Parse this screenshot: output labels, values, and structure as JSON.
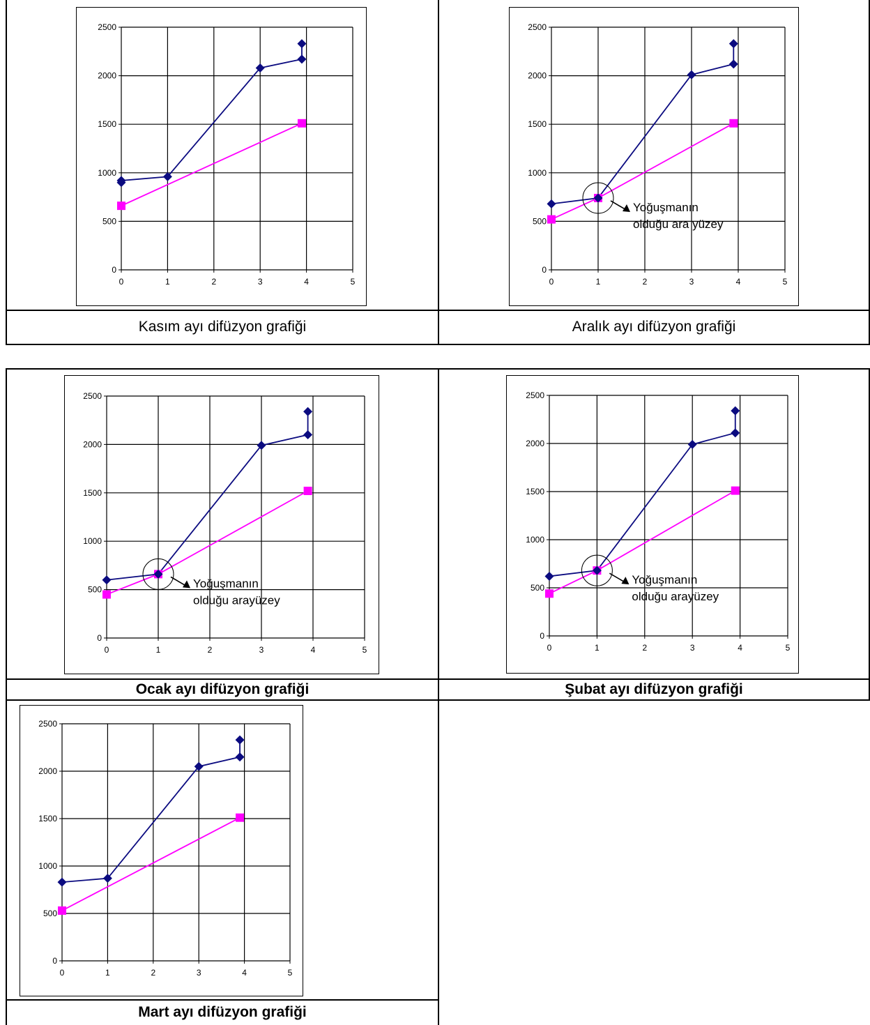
{
  "chart_data": [
    {
      "type": "line",
      "caption": "Kasım ayı difüzyon grafiği",
      "caption_bold": false,
      "xlim": [
        0,
        5
      ],
      "ylim": [
        0,
        2500
      ],
      "x_ticks": [
        "0",
        "1",
        "2",
        "3",
        "4",
        "5"
      ],
      "y_ticks": [
        "0",
        "500",
        "1000",
        "1500",
        "2000",
        "2500"
      ],
      "grid": true,
      "series": [
        {
          "color": "#0b0b80",
          "marker": "diamond",
          "points": [
            [
              0,
              900
            ],
            [
              0,
              920
            ],
            [
              1,
              960
            ],
            [
              3,
              2080
            ],
            [
              3.9,
              2170
            ],
            [
              3.9,
              2330
            ]
          ]
        },
        {
          "color": "#ff00ff",
          "marker": "square",
          "points": [
            [
              0,
              660
            ],
            [
              3.9,
              1510
            ]
          ]
        }
      ],
      "annotation": null
    },
    {
      "type": "line",
      "caption": "Aralık ayı difüzyon grafiği",
      "caption_bold": false,
      "xlim": [
        0,
        5
      ],
      "ylim": [
        0,
        2500
      ],
      "x_ticks": [
        "0",
        "1",
        "2",
        "3",
        "4",
        "5"
      ],
      "y_ticks": [
        "0",
        "500",
        "1000",
        "1500",
        "2000",
        "2500"
      ],
      "grid": true,
      "series": [
        {
          "color": "#0b0b80",
          "marker": "diamond",
          "points": [
            [
              0,
              680
            ],
            [
              1,
              740
            ],
            [
              3,
              2010
            ],
            [
              3.9,
              2120
            ],
            [
              3.9,
              2330
            ]
          ]
        },
        {
          "color": "#ff00ff",
          "marker": "square",
          "points": [
            [
              0,
              520
            ],
            [
              1,
              740
            ],
            [
              3.9,
              1510
            ]
          ]
        }
      ],
      "annotation": {
        "lines": [
          "Yoğuşmanın",
          "olduğu ara yüzey"
        ],
        "x": 1,
        "y": 740
      }
    },
    {
      "type": "line",
      "caption": "Ocak ayı difüzyon grafiği",
      "caption_bold": true,
      "xlim": [
        0,
        5
      ],
      "ylim": [
        0,
        2500
      ],
      "x_ticks": [
        "0",
        "1",
        "2",
        "3",
        "4",
        "5"
      ],
      "y_ticks": [
        "0",
        "500",
        "1000",
        "1500",
        "2000",
        "2500"
      ],
      "grid": true,
      "series": [
        {
          "color": "#0b0b80",
          "marker": "diamond",
          "points": [
            [
              0,
              600
            ],
            [
              1,
              660
            ],
            [
              3,
              1990
            ],
            [
              3.9,
              2100
            ],
            [
              3.9,
              2340
            ]
          ]
        },
        {
          "color": "#ff00ff",
          "marker": "square",
          "points": [
            [
              0,
              450
            ],
            [
              1,
              660
            ],
            [
              3.9,
              1520
            ]
          ]
        }
      ],
      "annotation": {
        "lines": [
          "Yoğuşmanın",
          "olduğu arayüzey"
        ],
        "x": 1,
        "y": 660
      }
    },
    {
      "type": "line",
      "caption": "Şubat ayı difüzyon grafiği",
      "caption_bold": true,
      "xlim": [
        0,
        5
      ],
      "ylim": [
        0,
        2500
      ],
      "x_ticks": [
        "0",
        "1",
        "2",
        "3",
        "4",
        "5"
      ],
      "y_ticks": [
        "0",
        "500",
        "1000",
        "1500",
        "2000",
        "2500"
      ],
      "grid": true,
      "series": [
        {
          "color": "#0b0b80",
          "marker": "diamond",
          "points": [
            [
              0,
              620
            ],
            [
              1,
              680
            ],
            [
              3,
              1990
            ],
            [
              3.9,
              2110
            ],
            [
              3.9,
              2340
            ]
          ]
        },
        {
          "color": "#ff00ff",
          "marker": "square",
          "points": [
            [
              0,
              440
            ],
            [
              1,
              680
            ],
            [
              3.9,
              1510
            ]
          ]
        }
      ],
      "annotation": {
        "lines": [
          "Yoğuşmanın",
          "olduğu arayüzey"
        ],
        "x": 1,
        "y": 680
      }
    },
    {
      "type": "line",
      "caption": "Mart ayı difüzyon grafiği",
      "caption_bold": true,
      "xlim": [
        0,
        5
      ],
      "ylim": [
        0,
        2500
      ],
      "x_ticks": [
        "0",
        "1",
        "2",
        "3",
        "4",
        "5"
      ],
      "y_ticks": [
        "0",
        "500",
        "1000",
        "1500",
        "2000",
        "2500"
      ],
      "grid": true,
      "series": [
        {
          "color": "#0b0b80",
          "marker": "diamond",
          "points": [
            [
              0,
              830
            ],
            [
              1,
              870
            ],
            [
              3,
              2050
            ],
            [
              3.9,
              2150
            ],
            [
              3.9,
              2330
            ]
          ]
        },
        {
          "color": "#ff00ff",
          "marker": "square",
          "points": [
            [
              0,
              530
            ],
            [
              3.9,
              1510
            ]
          ]
        }
      ],
      "annotation": null
    }
  ]
}
